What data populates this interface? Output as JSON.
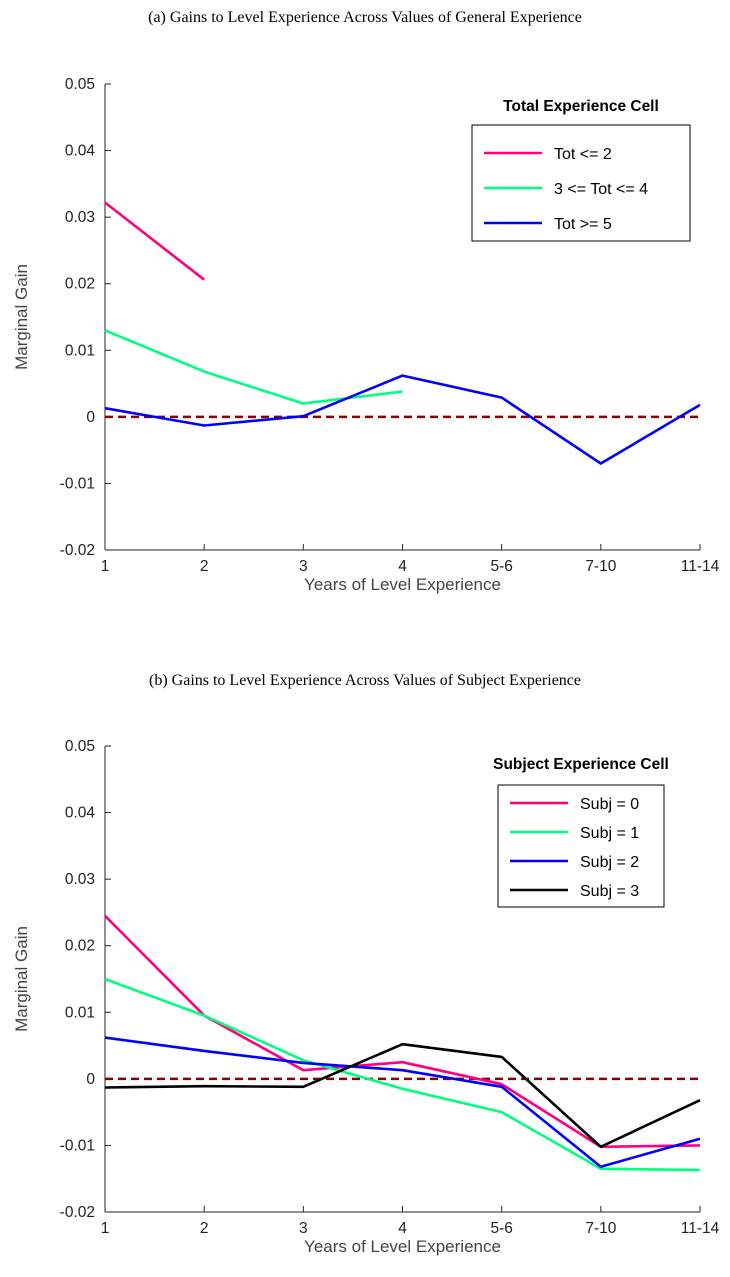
{
  "chart_data": [
    {
      "type": "line",
      "title": "(a) Gains to Level Experience Across Values of General Experience",
      "xlabel": "Years of Level Experience",
      "ylabel": "Marginal Gain",
      "categories": [
        "1",
        "2",
        "3",
        "4",
        "5-6",
        "7-10",
        "11-14"
      ],
      "yticks": [
        "-0.02",
        "-0.01",
        "0",
        "0.01",
        "0.02",
        "0.03",
        "0.04",
        "0.05"
      ],
      "ylim": [
        -0.02,
        0.05
      ],
      "reference_line": {
        "y": 0,
        "color": "#8b0000",
        "style": "dashed"
      },
      "legend": {
        "title": "Total Experience Cell",
        "position": "top-right"
      },
      "series": [
        {
          "name": "Tot <= 2",
          "color": "#ff0080",
          "values": [
            0.0322,
            0.0206,
            null,
            null,
            null,
            null,
            null
          ]
        },
        {
          "name": "3 <= Tot <= 4",
          "color": "#00ff7f",
          "values": [
            0.013,
            0.0068,
            0.002,
            0.0038,
            null,
            null,
            null
          ]
        },
        {
          "name": "Tot >= 5",
          "color": "#0000ff",
          "values": [
            0.0013,
            -0.0013,
            0.0001,
            0.0062,
            0.0029,
            -0.007,
            0.0018
          ]
        }
      ]
    },
    {
      "type": "line",
      "title": "(b) Gains to Level Experience Across Values of Subject Experience",
      "xlabel": "Years of Level Experience",
      "ylabel": "Marginal Gain",
      "categories": [
        "1",
        "2",
        "3",
        "4",
        "5-6",
        "7-10",
        "11-14"
      ],
      "yticks": [
        "-0.02",
        "-0.01",
        "0",
        "0.01",
        "0.02",
        "0.03",
        "0.04",
        "0.05"
      ],
      "ylim": [
        -0.02,
        0.05
      ],
      "reference_line": {
        "y": 0,
        "color": "#8b0000",
        "style": "dashed"
      },
      "legend": {
        "title": "Subject Experience Cell",
        "position": "top-right"
      },
      "series": [
        {
          "name": "Subj = 0",
          "color": "#ff0080",
          "values": [
            0.0245,
            0.0095,
            0.0013,
            0.0025,
            -0.0008,
            -0.0102,
            -0.01
          ]
        },
        {
          "name": "Subj = 1",
          "color": "#00ff7f",
          "values": [
            0.015,
            0.0095,
            0.0028,
            -0.0015,
            -0.005,
            -0.0135,
            -0.0137
          ]
        },
        {
          "name": "Subj = 2",
          "color": "#0000ff",
          "values": [
            0.0062,
            0.0042,
            0.0024,
            0.0013,
            -0.0012,
            -0.0132,
            -0.009
          ]
        },
        {
          "name": "Subj = 3",
          "color": "#000000",
          "values": [
            -0.0013,
            -0.0011,
            -0.0012,
            0.0052,
            0.0033,
            -0.0102,
            -0.0032
          ]
        }
      ]
    }
  ]
}
